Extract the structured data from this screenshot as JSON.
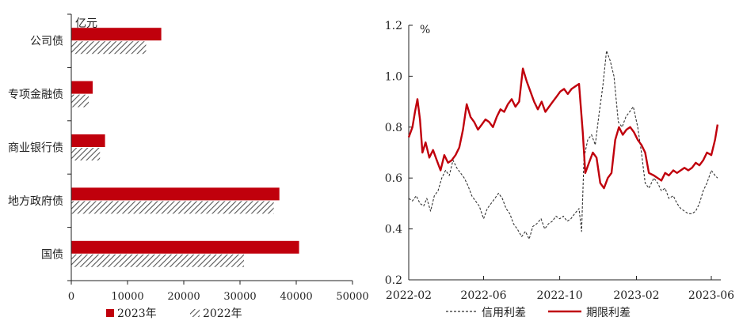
{
  "chart_data": [
    {
      "type": "bar",
      "orientation": "horizontal",
      "unit_label": "亿元",
      "categories": [
        "公司债",
        "专项金融债",
        "商业银行债",
        "地方政府债",
        "国债"
      ],
      "series": [
        {
          "name": "2023年",
          "color": "#c0000c",
          "pattern": "solid",
          "values": [
            16000,
            3800,
            6000,
            37000,
            40500
          ]
        },
        {
          "name": "2022年",
          "color": "#555555",
          "pattern": "hatched",
          "values": [
            13300,
            3100,
            5100,
            36000,
            30700
          ]
        }
      ],
      "xlim": [
        0,
        50000
      ],
      "xticks": [
        "0",
        "10000",
        "20000",
        "30000",
        "40000",
        "50000"
      ],
      "legend_position": "bottom"
    },
    {
      "type": "line",
      "unit_label": "%",
      "ylim": [
        0.2,
        1.2
      ],
      "yticks": [
        "0.2",
        "0.4",
        "0.6",
        "0.8",
        "1.0",
        "1.2"
      ],
      "xlim": [
        "2022-02",
        "2023-06"
      ],
      "xticks": [
        "2022-02",
        "2022-06",
        "2022-10",
        "2023-02",
        "2023-06"
      ],
      "legend_position": "bottom",
      "series": [
        {
          "name": "信用利差",
          "color": "#333333",
          "dash": "dashed",
          "points": [
            [
              "2022-02-01",
              0.52
            ],
            [
              "2022-02-07",
              0.51
            ],
            [
              "2022-02-13",
              0.53
            ],
            [
              "2022-02-19",
              0.5
            ],
            [
              "2022-02-25",
              0.49
            ],
            [
              "2022-03-02",
              0.52
            ],
            [
              "2022-03-08",
              0.47
            ],
            [
              "2022-03-14",
              0.53
            ],
            [
              "2022-03-20",
              0.55
            ],
            [
              "2022-03-26",
              0.6
            ],
            [
              "2022-04-01",
              0.63
            ],
            [
              "2022-04-07",
              0.61
            ],
            [
              "2022-04-13",
              0.67
            ],
            [
              "2022-04-19",
              0.64
            ],
            [
              "2022-04-25",
              0.62
            ],
            [
              "2022-05-01",
              0.6
            ],
            [
              "2022-05-07",
              0.57
            ],
            [
              "2022-05-13",
              0.53
            ],
            [
              "2022-05-19",
              0.51
            ],
            [
              "2022-05-25",
              0.49
            ],
            [
              "2022-06-01",
              0.44
            ],
            [
              "2022-06-07",
              0.48
            ],
            [
              "2022-06-13",
              0.5
            ],
            [
              "2022-06-19",
              0.52
            ],
            [
              "2022-06-25",
              0.54
            ],
            [
              "2022-07-01",
              0.52
            ],
            [
              "2022-07-07",
              0.48
            ],
            [
              "2022-07-13",
              0.46
            ],
            [
              "2022-07-19",
              0.42
            ],
            [
              "2022-07-25",
              0.4
            ],
            [
              "2022-08-01",
              0.37
            ],
            [
              "2022-08-07",
              0.39
            ],
            [
              "2022-08-13",
              0.36
            ],
            [
              "2022-08-19",
              0.41
            ],
            [
              "2022-08-25",
              0.42
            ],
            [
              "2022-09-01",
              0.44
            ],
            [
              "2022-09-07",
              0.4
            ],
            [
              "2022-09-13",
              0.42
            ],
            [
              "2022-09-19",
              0.43
            ],
            [
              "2022-09-25",
              0.45
            ],
            [
              "2022-10-01",
              0.44
            ],
            [
              "2022-10-07",
              0.45
            ],
            [
              "2022-10-13",
              0.43
            ],
            [
              "2022-10-19",
              0.44
            ],
            [
              "2022-10-25",
              0.46
            ],
            [
              "2022-11-01",
              0.48
            ],
            [
              "2022-11-05",
              0.39
            ],
            [
              "2022-11-09",
              0.68
            ],
            [
              "2022-11-15",
              0.75
            ],
            [
              "2022-11-21",
              0.77
            ],
            [
              "2022-11-27",
              0.73
            ],
            [
              "2022-12-03",
              0.85
            ],
            [
              "2022-12-09",
              0.96
            ],
            [
              "2022-12-15",
              1.1
            ],
            [
              "2022-12-21",
              1.06
            ],
            [
              "2022-12-27",
              1.0
            ],
            [
              "2023-01-03",
              0.82
            ],
            [
              "2023-01-09",
              0.8
            ],
            [
              "2023-01-15",
              0.84
            ],
            [
              "2023-01-21",
              0.86
            ],
            [
              "2023-01-27",
              0.88
            ],
            [
              "2023-02-03",
              0.8
            ],
            [
              "2023-02-09",
              0.7
            ],
            [
              "2023-02-15",
              0.58
            ],
            [
              "2023-02-21",
              0.56
            ],
            [
              "2023-03-01",
              0.6
            ],
            [
              "2023-03-07",
              0.58
            ],
            [
              "2023-03-13",
              0.55
            ],
            [
              "2023-03-19",
              0.56
            ],
            [
              "2023-03-25",
              0.52
            ],
            [
              "2023-04-01",
              0.53
            ],
            [
              "2023-04-07",
              0.5
            ],
            [
              "2023-04-13",
              0.48
            ],
            [
              "2023-04-19",
              0.47
            ],
            [
              "2023-04-25",
              0.46
            ],
            [
              "2023-05-01",
              0.46
            ],
            [
              "2023-05-07",
              0.47
            ],
            [
              "2023-05-13",
              0.5
            ],
            [
              "2023-05-19",
              0.55
            ],
            [
              "2023-05-25",
              0.58
            ],
            [
              "2023-06-01",
              0.63
            ],
            [
              "2023-06-07",
              0.61
            ],
            [
              "2023-06-11",
              0.6
            ]
          ]
        },
        {
          "name": "期限利差",
          "color": "#c0000c",
          "dash": "solid",
          "points": [
            [
              "2022-02-01",
              0.76
            ],
            [
              "2022-02-07",
              0.8
            ],
            [
              "2022-02-11",
              0.86
            ],
            [
              "2022-02-15",
              0.91
            ],
            [
              "2022-02-19",
              0.83
            ],
            [
              "2022-02-23",
              0.7
            ],
            [
              "2022-02-28",
              0.74
            ],
            [
              "2022-03-06",
              0.68
            ],
            [
              "2022-03-12",
              0.71
            ],
            [
              "2022-03-18",
              0.67
            ],
            [
              "2022-03-24",
              0.63
            ],
            [
              "2022-03-30",
              0.69
            ],
            [
              "2022-04-05",
              0.66
            ],
            [
              "2022-04-11",
              0.67
            ],
            [
              "2022-04-17",
              0.69
            ],
            [
              "2022-04-23",
              0.72
            ],
            [
              "2022-04-29",
              0.79
            ],
            [
              "2022-05-05",
              0.89
            ],
            [
              "2022-05-11",
              0.84
            ],
            [
              "2022-05-17",
              0.82
            ],
            [
              "2022-05-23",
              0.79
            ],
            [
              "2022-05-29",
              0.81
            ],
            [
              "2022-06-04",
              0.83
            ],
            [
              "2022-06-10",
              0.82
            ],
            [
              "2022-06-16",
              0.8
            ],
            [
              "2022-06-22",
              0.84
            ],
            [
              "2022-06-28",
              0.87
            ],
            [
              "2022-07-04",
              0.86
            ],
            [
              "2022-07-10",
              0.89
            ],
            [
              "2022-07-16",
              0.91
            ],
            [
              "2022-07-22",
              0.88
            ],
            [
              "2022-07-28",
              0.9
            ],
            [
              "2022-08-03",
              1.03
            ],
            [
              "2022-08-09",
              0.98
            ],
            [
              "2022-08-15",
              0.94
            ],
            [
              "2022-08-21",
              0.9
            ],
            [
              "2022-08-27",
              0.87
            ],
            [
              "2022-09-02",
              0.9
            ],
            [
              "2022-09-08",
              0.86
            ],
            [
              "2022-09-14",
              0.88
            ],
            [
              "2022-09-20",
              0.9
            ],
            [
              "2022-09-26",
              0.92
            ],
            [
              "2022-10-02",
              0.94
            ],
            [
              "2022-10-08",
              0.95
            ],
            [
              "2022-10-14",
              0.93
            ],
            [
              "2022-10-20",
              0.95
            ],
            [
              "2022-10-26",
              0.96
            ],
            [
              "2022-11-01",
              0.97
            ],
            [
              "2022-11-07",
              0.78
            ],
            [
              "2022-11-11",
              0.62
            ],
            [
              "2022-11-17",
              0.66
            ],
            [
              "2022-11-23",
              0.7
            ],
            [
              "2022-11-29",
              0.68
            ],
            [
              "2022-12-05",
              0.58
            ],
            [
              "2022-12-11",
              0.56
            ],
            [
              "2022-12-17",
              0.6
            ],
            [
              "2022-12-23",
              0.62
            ],
            [
              "2022-12-29",
              0.75
            ],
            [
              "2023-01-04",
              0.8
            ],
            [
              "2023-01-10",
              0.77
            ],
            [
              "2023-01-16",
              0.79
            ],
            [
              "2023-01-22",
              0.8
            ],
            [
              "2023-01-28",
              0.78
            ],
            [
              "2023-02-03",
              0.75
            ],
            [
              "2023-02-09",
              0.73
            ],
            [
              "2023-02-15",
              0.7
            ],
            [
              "2023-02-21",
              0.62
            ],
            [
              "2023-03-01",
              0.61
            ],
            [
              "2023-03-07",
              0.6
            ],
            [
              "2023-03-13",
              0.59
            ],
            [
              "2023-03-19",
              0.62
            ],
            [
              "2023-03-25",
              0.61
            ],
            [
              "2023-04-01",
              0.63
            ],
            [
              "2023-04-07",
              0.62
            ],
            [
              "2023-04-13",
              0.63
            ],
            [
              "2023-04-19",
              0.64
            ],
            [
              "2023-04-25",
              0.63
            ],
            [
              "2023-05-01",
              0.64
            ],
            [
              "2023-05-07",
              0.66
            ],
            [
              "2023-05-13",
              0.65
            ],
            [
              "2023-05-19",
              0.67
            ],
            [
              "2023-05-25",
              0.7
            ],
            [
              "2023-06-01",
              0.69
            ],
            [
              "2023-06-07",
              0.75
            ],
            [
              "2023-06-11",
              0.81
            ]
          ]
        }
      ]
    }
  ]
}
